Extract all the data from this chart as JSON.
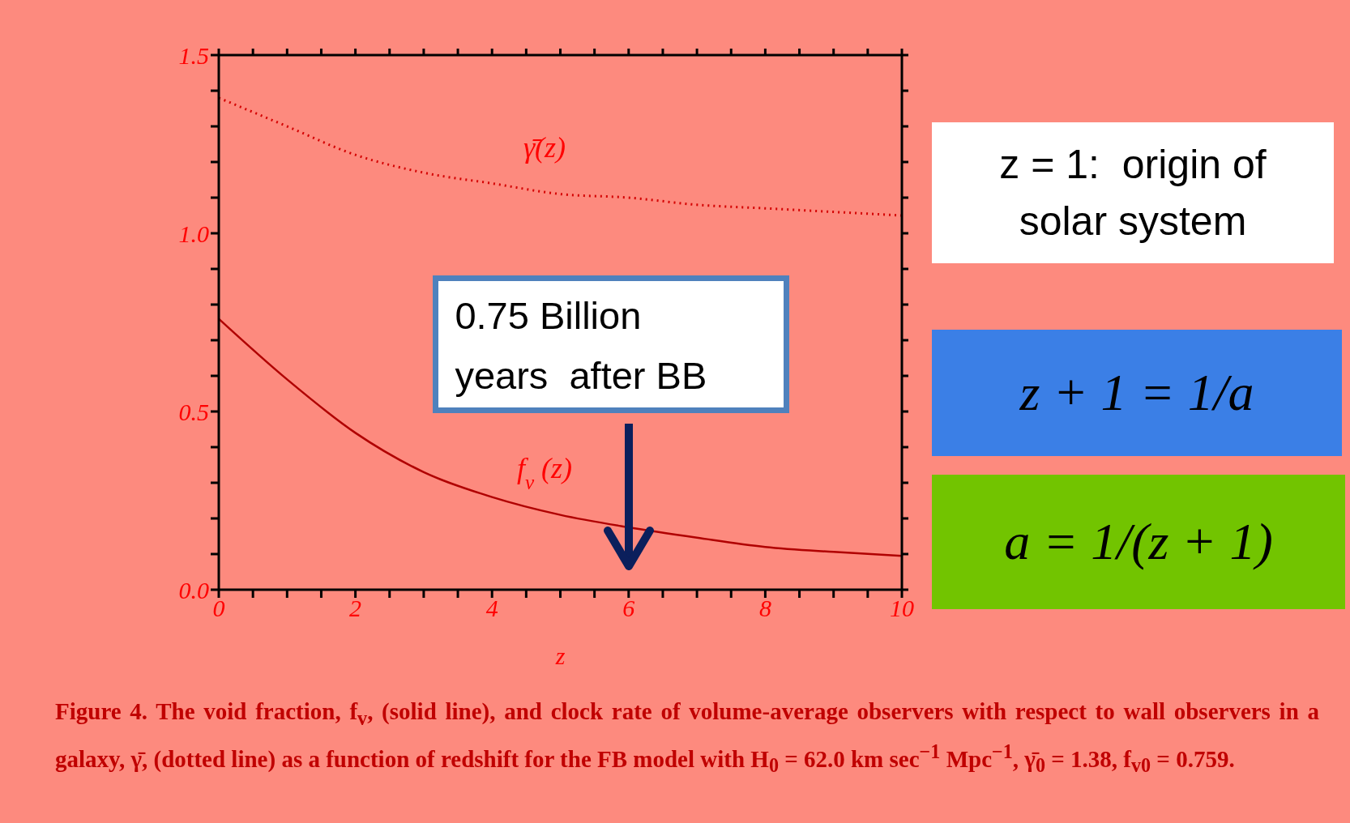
{
  "chart_data": {
    "type": "line",
    "xlabel": "z",
    "xlim": [
      0,
      10
    ],
    "xticks": [
      0,
      {
        "value": 0.5,
        "label": null
      },
      {
        "value": 1,
        "label": null
      },
      {
        "value": 1.5,
        "label": null
      },
      2,
      {
        "value": 2.5,
        "label": null
      },
      {
        "value": 3,
        "label": null
      },
      {
        "value": 3.5,
        "label": null
      },
      4,
      {
        "value": 4.5,
        "label": null
      },
      {
        "value": 5,
        "label": null
      },
      {
        "value": 5.5,
        "label": null
      },
      6,
      {
        "value": 6.5,
        "label": null
      },
      {
        "value": 7,
        "label": null
      },
      {
        "value": 7.5,
        "label": null
      },
      8,
      {
        "value": 8.5,
        "label": null
      },
      {
        "value": 9,
        "label": null
      },
      {
        "value": 9.5,
        "label": null
      },
      10
    ],
    "ylim": [
      0,
      1.5
    ],
    "yticks": [
      {
        "value": 0,
        "label": "0.0"
      },
      {
        "value": 0.1,
        "label": null
      },
      {
        "value": 0.2,
        "label": null
      },
      {
        "value": 0.3,
        "label": null
      },
      {
        "value": 0.4,
        "label": null
      },
      {
        "value": 0.5,
        "label": "0.5"
      },
      {
        "value": 0.6,
        "label": null
      },
      {
        "value": 0.7,
        "label": null
      },
      {
        "value": 0.8,
        "label": null
      },
      {
        "value": 0.9,
        "label": null
      },
      {
        "value": 1,
        "label": "1.0"
      },
      {
        "value": 1.1,
        "label": null
      },
      {
        "value": 1.2,
        "label": null
      },
      {
        "value": 1.3,
        "label": null
      },
      {
        "value": 1.4,
        "label": null
      },
      {
        "value": 1.5,
        "label": "1.5"
      }
    ],
    "x": [
      0,
      1,
      2,
      3,
      4,
      5,
      6,
      7,
      8,
      9,
      10
    ],
    "series": [
      {
        "name": "γ̄(z)",
        "color": "#d40000",
        "line_style": "dotted",
        "values": [
          1.38,
          1.3,
          1.22,
          1.17,
          1.14,
          1.11,
          1.1,
          1.08,
          1.07,
          1.06,
          1.05
        ]
      },
      {
        "name": "f$_{v}$(z)",
        "color": "#b00000",
        "line_style": "solid",
        "values": [
          0.76,
          0.59,
          0.44,
          0.33,
          0.26,
          0.21,
          0.175,
          0.146,
          0.12,
          0.106,
          0.095
        ]
      }
    ],
    "annotations": [
      "0.75 Billion years  after BB",
      "z = 1:  origin of solar system",
      "z + 1 = 1/a",
      "a = 1/(z + 1)",
      "Figure 4.  The void fraction, f$_{v}$, (solid line), and clock rate of volume-average observers with respect to wall observers in a galaxy, γ̄, (dotted line) as a function of redshift for the FB model with H$_{0}$ = 62.0 km sec$^{−1}$ Mpc$^{−1}$, γ̄$_{0}$ = 1.38, f$_{v0}$ = 0.759."
    ]
  }
}
